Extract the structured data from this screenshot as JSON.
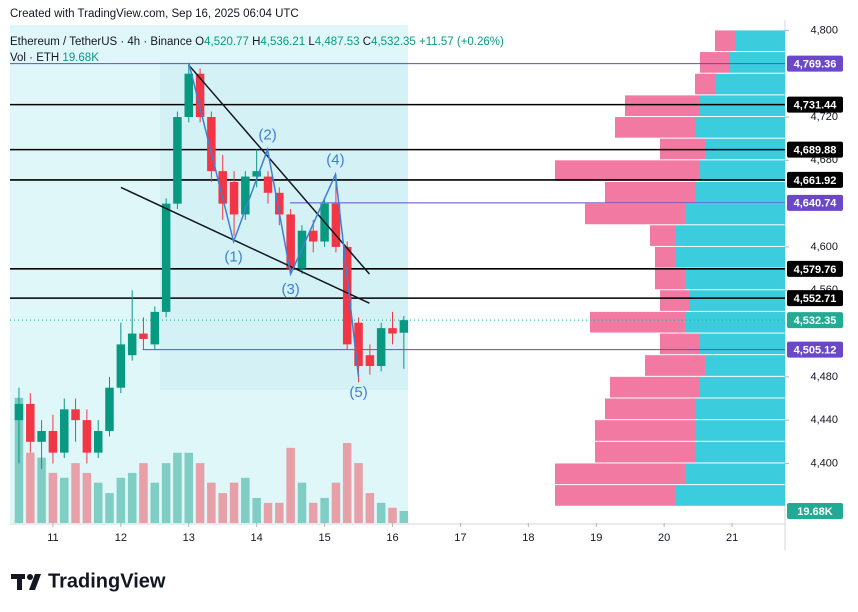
{
  "header": {
    "credit": "Created with TradingView.com, Sep 16, 2025 06:04 UTC",
    "symbol": "Ethereum / TetherUS · 4h · Binance",
    "ohlc_keys": [
      "O",
      "H",
      "L",
      "C"
    ],
    "ohlc_values": [
      "4,520.77",
      "4,536.21",
      "4,487.53",
      "4,532.35"
    ],
    "change": "+11.57 (+0.26%)",
    "volume_name": "Vol · ETH",
    "volume_value": "19.68K"
  },
  "footer": {
    "brand": "TradingView"
  },
  "chart_data": {
    "type": "candlestick",
    "xlim": [
      10.368,
      21.779
    ],
    "xticks": [
      11,
      12,
      13,
      14,
      15,
      16,
      17,
      18,
      19,
      20,
      21
    ],
    "ylim": [
      4345,
      4805
    ],
    "yticks": [
      {
        "value": 4800,
        "label": "4,800"
      },
      {
        "value": 4720,
        "label": "4,720"
      },
      {
        "value": 4680,
        "label": "4,680"
      },
      {
        "value": 4600,
        "label": "4,600"
      },
      {
        "value": 4560,
        "label": "4,560"
      },
      {
        "value": 4480,
        "label": "4,480"
      },
      {
        "value": 4440,
        "label": "4,440"
      },
      {
        "value": 4400,
        "label": "4,400"
      }
    ],
    "up_color": "#089981",
    "down_color": "#f23645",
    "x": [
      10.5,
      10.667,
      10.833,
      11.0,
      11.167,
      11.333,
      11.5,
      11.667,
      11.833,
      12.0,
      12.167,
      12.333,
      12.5,
      12.667,
      12.833,
      13.0,
      13.167,
      13.333,
      13.5,
      13.667,
      13.833,
      14.0,
      14.167,
      14.333,
      14.5,
      14.667,
      14.833,
      15.0,
      15.167,
      15.333,
      15.5,
      15.667,
      15.833,
      16.0,
      16.167
    ],
    "open": [
      4440,
      4455,
      4420,
      4430,
      4410,
      4450,
      4440,
      4410,
      4430,
      4470,
      4500,
      4520,
      4510,
      4540,
      4640,
      4720,
      4760,
      4720,
      4670,
      4660,
      4630,
      4665,
      4665,
      4650,
      4630,
      4580,
      4615,
      4605,
      4640,
      4600,
      4530,
      4500,
      4490,
      4525,
      4520.77
    ],
    "high": [
      4470,
      4465,
      4440,
      4445,
      4460,
      4460,
      4450,
      4440,
      4480,
      4530,
      4560,
      4535,
      4545,
      4645,
      4725,
      4770,
      4765,
      4725,
      4685,
      4670,
      4670,
      4690,
      4670,
      4655,
      4635,
      4620,
      4625,
      4645,
      4667,
      4605,
      4535,
      4510,
      4530,
      4540,
      4536.21
    ],
    "low": [
      4400,
      4410,
      4395,
      4400,
      4405,
      4420,
      4400,
      4405,
      4425,
      4465,
      4495,
      4505,
      4505,
      4535,
      4635,
      4715,
      4715,
      4660,
      4625,
      4610,
      4625,
      4655,
      4640,
      4620,
      4575,
      4575,
      4595,
      4600,
      4595,
      4505,
      4475,
      4482,
      4485,
      4510,
      4487.53
    ],
    "close": [
      4455,
      4420,
      4430,
      4410,
      4450,
      4440,
      4410,
      4430,
      4470,
      4510,
      4520,
      4515,
      4540,
      4640,
      4720,
      4760,
      4720,
      4670,
      4640,
      4630,
      4665,
      4670,
      4650,
      4630,
      4580,
      4615,
      4605,
      4640,
      4600,
      4510,
      4490,
      4490,
      4525,
      4520,
      4532.35
    ],
    "volume": [
      205,
      115,
      107,
      82,
      74,
      98,
      82,
      66,
      49,
      74,
      82,
      98,
      66,
      98,
      115,
      115,
      98,
      66,
      49,
      66,
      74,
      41,
      33,
      33,
      123,
      66,
      33,
      41,
      66,
      131,
      98,
      49,
      33,
      25,
      19.68
    ],
    "volume_lim": [
      0,
      815
    ],
    "levels": [
      {
        "value": 4769.36,
        "label": "4,769.36",
        "color": "#6a48c8"
      },
      {
        "value": 4731.44,
        "label": "4,731.44",
        "color": "#000000"
      },
      {
        "value": 4689.88,
        "label": "4,689.88",
        "color": "#000000"
      },
      {
        "value": 4661.92,
        "label": "4,661.92",
        "color": "#000000"
      },
      {
        "value": 4640.74,
        "label": "4,640.74",
        "color": "#6a48c8",
        "from": 14.49
      },
      {
        "value": 4579.76,
        "label": "4,579.76",
        "color": "#000000"
      },
      {
        "value": 4552.71,
        "label": "4,552.71",
        "color": "#000000"
      },
      {
        "value": 4532.35,
        "label": "4,532.35",
        "color": "#22ab94",
        "dashed": true
      },
      {
        "value": 4505.12,
        "label": "4,505.12",
        "color": "#6a48c8",
        "from": 12.32
      }
    ],
    "trendlines": [
      {
        "x": [
          13.0,
          15.66
        ],
        "price": [
          4768,
          4575
        ]
      },
      {
        "x": [
          12.0,
          15.66
        ],
        "price": [
          4655,
          4548
        ]
      }
    ],
    "wave": {
      "x": [
        13.0,
        13.66,
        14.16,
        14.5,
        15.16,
        15.5
      ],
      "price": [
        4770,
        4605,
        4690,
        4575,
        4667,
        4480
      ],
      "labels": [
        null,
        "(1)",
        "(2)",
        "(3)",
        "(4)",
        "(5)"
      ],
      "label_side": [
        null,
        "below",
        "above",
        "below",
        "above",
        "below"
      ],
      "color": "#3d7fd6"
    },
    "profile": {
      "prices": [
        4360,
        4380,
        4400,
        4420,
        4440,
        4460,
        4480,
        4500,
        4520,
        4540,
        4560,
        4580,
        4600,
        4620,
        4640,
        4660,
        4680,
        4700,
        4720,
        4740,
        4760,
        4780
      ],
      "up": [
        110,
        100,
        90,
        90,
        90,
        85,
        80,
        85,
        100,
        95,
        100,
        110,
        110,
        100,
        90,
        85,
        80,
        90,
        85,
        70,
        55,
        50
      ],
      "down": [
        120,
        130,
        100,
        100,
        90,
        90,
        60,
        40,
        95,
        30,
        30,
        20,
        25,
        100,
        90,
        145,
        45,
        80,
        75,
        20,
        30,
        20
      ],
      "xlim": [
        0,
        775
      ],
      "up_color": "#26c6da",
      "down_color": "#f06292"
    }
  }
}
